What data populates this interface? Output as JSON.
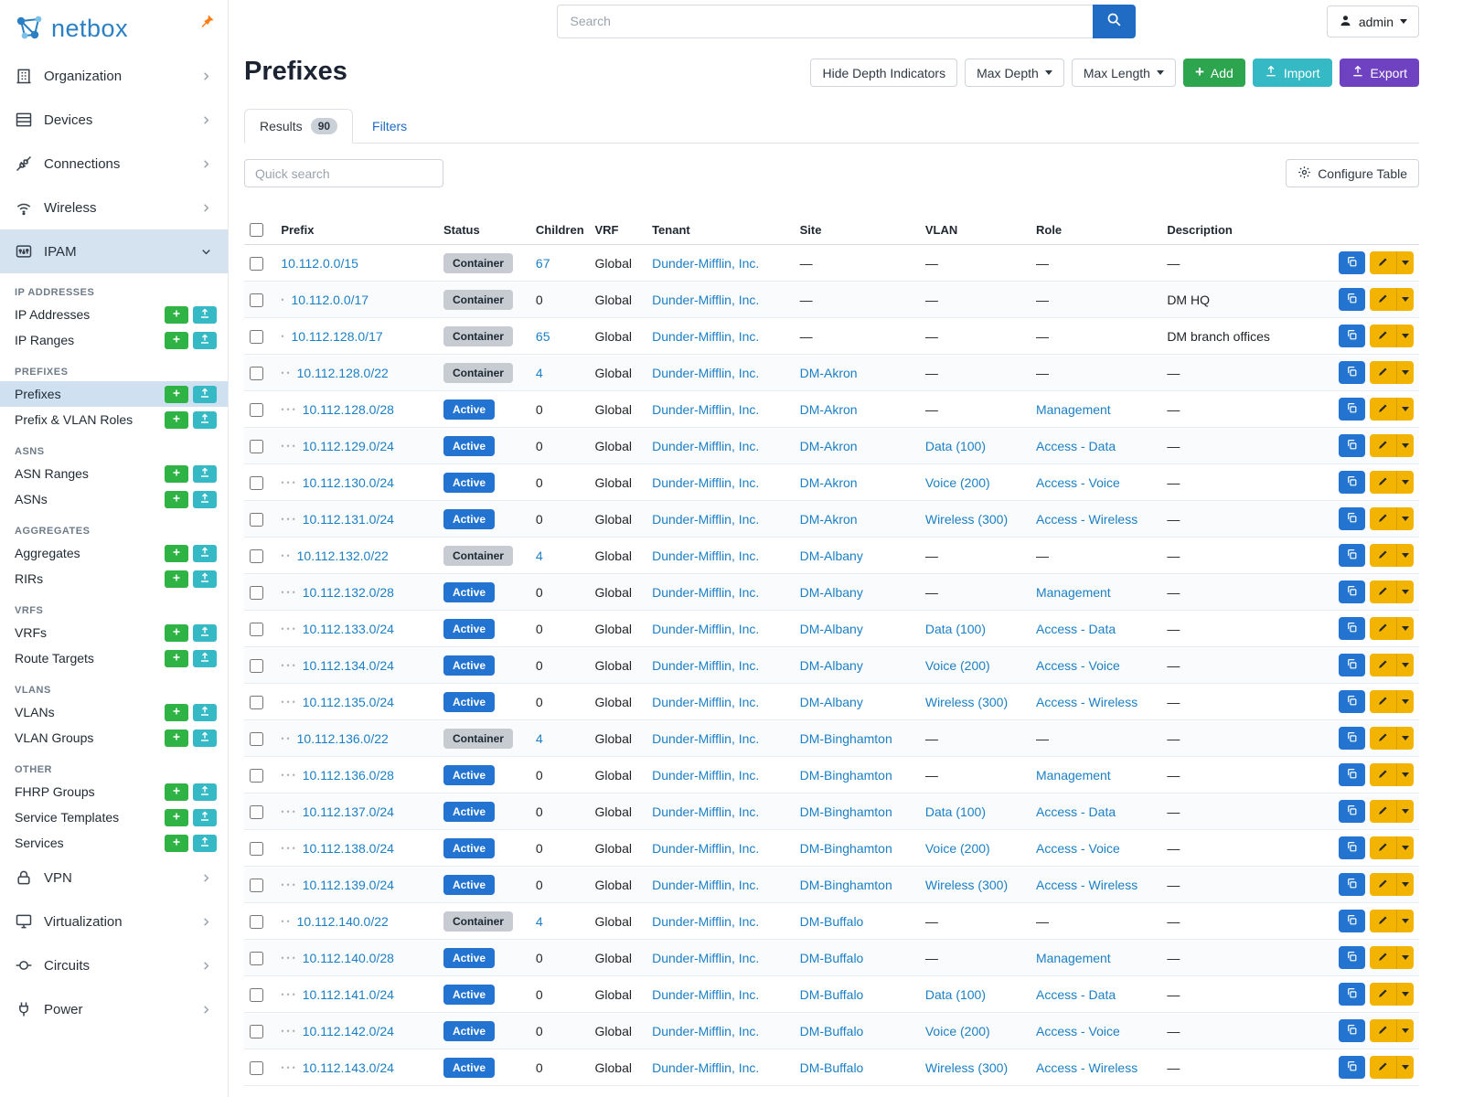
{
  "brand": {
    "name": "netbox"
  },
  "topbar": {
    "search_placeholder": "Search",
    "user": "admin"
  },
  "page": {
    "title": "Prefixes",
    "actions": {
      "hide_depth": "Hide Depth Indicators",
      "max_depth": "Max Depth",
      "max_length": "Max Length",
      "add": "Add",
      "import": "Import",
      "export": "Export"
    }
  },
  "tabs": {
    "results": "Results",
    "results_count": "90",
    "filters": "Filters"
  },
  "toolbar": {
    "quick_search_placeholder": "Quick search",
    "configure": "Configure Table"
  },
  "sidebar": {
    "items": [
      {
        "label": "Organization",
        "icon": "building-icon"
      },
      {
        "label": "Devices",
        "icon": "devices-icon"
      },
      {
        "label": "Connections",
        "icon": "connections-icon"
      },
      {
        "label": "Wireless",
        "icon": "wifi-icon"
      },
      {
        "label": "IPAM",
        "icon": "ipam-icon",
        "expanded": true,
        "groups": [
          {
            "header": "IP ADDRESSES",
            "items": [
              {
                "label": "IP Addresses"
              },
              {
                "label": "IP Ranges"
              }
            ]
          },
          {
            "header": "PREFIXES",
            "items": [
              {
                "label": "Prefixes",
                "active": true
              },
              {
                "label": "Prefix & VLAN Roles"
              }
            ]
          },
          {
            "header": "ASNS",
            "items": [
              {
                "label": "ASN Ranges"
              },
              {
                "label": "ASNs"
              }
            ]
          },
          {
            "header": "AGGREGATES",
            "items": [
              {
                "label": "Aggregates"
              },
              {
                "label": "RIRs"
              }
            ]
          },
          {
            "header": "VRFS",
            "items": [
              {
                "label": "VRFs"
              },
              {
                "label": "Route Targets"
              }
            ]
          },
          {
            "header": "VLANS",
            "items": [
              {
                "label": "VLANs"
              },
              {
                "label": "VLAN Groups"
              }
            ]
          },
          {
            "header": "OTHER",
            "items": [
              {
                "label": "FHRP Groups"
              },
              {
                "label": "Service Templates"
              },
              {
                "label": "Services"
              }
            ]
          }
        ]
      },
      {
        "label": "VPN",
        "icon": "lock-icon"
      },
      {
        "label": "Virtualization",
        "icon": "monitor-icon"
      },
      {
        "label": "Circuits",
        "icon": "circuits-icon"
      },
      {
        "label": "Power",
        "icon": "power-icon"
      }
    ]
  },
  "table": {
    "columns": [
      "Prefix",
      "Status",
      "Children",
      "VRF",
      "Tenant",
      "Site",
      "VLAN",
      "Role",
      "Description"
    ],
    "rows": [
      {
        "depth": 0,
        "prefix": "10.112.0.0/15",
        "status": "Container",
        "children": "67",
        "vrf": "Global",
        "tenant": "Dunder-Mifflin, Inc.",
        "site": "",
        "vlan": "",
        "role": "",
        "description": ""
      },
      {
        "depth": 1,
        "prefix": "10.112.0.0/17",
        "status": "Container",
        "children": "0",
        "vrf": "Global",
        "tenant": "Dunder-Mifflin, Inc.",
        "site": "",
        "vlan": "",
        "role": "",
        "description": "DM HQ"
      },
      {
        "depth": 1,
        "prefix": "10.112.128.0/17",
        "status": "Container",
        "children": "65",
        "vrf": "Global",
        "tenant": "Dunder-Mifflin, Inc.",
        "site": "",
        "vlan": "",
        "role": "",
        "description": "DM branch offices"
      },
      {
        "depth": 2,
        "prefix": "10.112.128.0/22",
        "status": "Container",
        "children": "4",
        "vrf": "Global",
        "tenant": "Dunder-Mifflin, Inc.",
        "site": "DM-Akron",
        "vlan": "",
        "role": "",
        "description": ""
      },
      {
        "depth": 3,
        "prefix": "10.112.128.0/28",
        "status": "Active",
        "children": "0",
        "vrf": "Global",
        "tenant": "Dunder-Mifflin, Inc.",
        "site": "DM-Akron",
        "vlan": "",
        "role": "Management",
        "description": ""
      },
      {
        "depth": 3,
        "prefix": "10.112.129.0/24",
        "status": "Active",
        "children": "0",
        "vrf": "Global",
        "tenant": "Dunder-Mifflin, Inc.",
        "site": "DM-Akron",
        "vlan": "Data (100)",
        "role": "Access - Data",
        "description": ""
      },
      {
        "depth": 3,
        "prefix": "10.112.130.0/24",
        "status": "Active",
        "children": "0",
        "vrf": "Global",
        "tenant": "Dunder-Mifflin, Inc.",
        "site": "DM-Akron",
        "vlan": "Voice (200)",
        "role": "Access - Voice",
        "description": ""
      },
      {
        "depth": 3,
        "prefix": "10.112.131.0/24",
        "status": "Active",
        "children": "0",
        "vrf": "Global",
        "tenant": "Dunder-Mifflin, Inc.",
        "site": "DM-Akron",
        "vlan": "Wireless (300)",
        "role": "Access - Wireless",
        "description": ""
      },
      {
        "depth": 2,
        "prefix": "10.112.132.0/22",
        "status": "Container",
        "children": "4",
        "vrf": "Global",
        "tenant": "Dunder-Mifflin, Inc.",
        "site": "DM-Albany",
        "vlan": "",
        "role": "",
        "description": ""
      },
      {
        "depth": 3,
        "prefix": "10.112.132.0/28",
        "status": "Active",
        "children": "0",
        "vrf": "Global",
        "tenant": "Dunder-Mifflin, Inc.",
        "site": "DM-Albany",
        "vlan": "",
        "role": "Management",
        "description": ""
      },
      {
        "depth": 3,
        "prefix": "10.112.133.0/24",
        "status": "Active",
        "children": "0",
        "vrf": "Global",
        "tenant": "Dunder-Mifflin, Inc.",
        "site": "DM-Albany",
        "vlan": "Data (100)",
        "role": "Access - Data",
        "description": ""
      },
      {
        "depth": 3,
        "prefix": "10.112.134.0/24",
        "status": "Active",
        "children": "0",
        "vrf": "Global",
        "tenant": "Dunder-Mifflin, Inc.",
        "site": "DM-Albany",
        "vlan": "Voice (200)",
        "role": "Access - Voice",
        "description": ""
      },
      {
        "depth": 3,
        "prefix": "10.112.135.0/24",
        "status": "Active",
        "children": "0",
        "vrf": "Global",
        "tenant": "Dunder-Mifflin, Inc.",
        "site": "DM-Albany",
        "vlan": "Wireless (300)",
        "role": "Access - Wireless",
        "description": ""
      },
      {
        "depth": 2,
        "prefix": "10.112.136.0/22",
        "status": "Container",
        "children": "4",
        "vrf": "Global",
        "tenant": "Dunder-Mifflin, Inc.",
        "site": "DM-Binghamton",
        "vlan": "",
        "role": "",
        "description": ""
      },
      {
        "depth": 3,
        "prefix": "10.112.136.0/28",
        "status": "Active",
        "children": "0",
        "vrf": "Global",
        "tenant": "Dunder-Mifflin, Inc.",
        "site": "DM-Binghamton",
        "vlan": "",
        "role": "Management",
        "description": ""
      },
      {
        "depth": 3,
        "prefix": "10.112.137.0/24",
        "status": "Active",
        "children": "0",
        "vrf": "Global",
        "tenant": "Dunder-Mifflin, Inc.",
        "site": "DM-Binghamton",
        "vlan": "Data (100)",
        "role": "Access - Data",
        "description": ""
      },
      {
        "depth": 3,
        "prefix": "10.112.138.0/24",
        "status": "Active",
        "children": "0",
        "vrf": "Global",
        "tenant": "Dunder-Mifflin, Inc.",
        "site": "DM-Binghamton",
        "vlan": "Voice (200)",
        "role": "Access - Voice",
        "description": ""
      },
      {
        "depth": 3,
        "prefix": "10.112.139.0/24",
        "status": "Active",
        "children": "0",
        "vrf": "Global",
        "tenant": "Dunder-Mifflin, Inc.",
        "site": "DM-Binghamton",
        "vlan": "Wireless (300)",
        "role": "Access - Wireless",
        "description": ""
      },
      {
        "depth": 2,
        "prefix": "10.112.140.0/22",
        "status": "Container",
        "children": "4",
        "vrf": "Global",
        "tenant": "Dunder-Mifflin, Inc.",
        "site": "DM-Buffalo",
        "vlan": "",
        "role": "",
        "description": ""
      },
      {
        "depth": 3,
        "prefix": "10.112.140.0/28",
        "status": "Active",
        "children": "0",
        "vrf": "Global",
        "tenant": "Dunder-Mifflin, Inc.",
        "site": "DM-Buffalo",
        "vlan": "",
        "role": "Management",
        "description": ""
      },
      {
        "depth": 3,
        "prefix": "10.112.141.0/24",
        "status": "Active",
        "children": "0",
        "vrf": "Global",
        "tenant": "Dunder-Mifflin, Inc.",
        "site": "DM-Buffalo",
        "vlan": "Data (100)",
        "role": "Access - Data",
        "description": ""
      },
      {
        "depth": 3,
        "prefix": "10.112.142.0/24",
        "status": "Active",
        "children": "0",
        "vrf": "Global",
        "tenant": "Dunder-Mifflin, Inc.",
        "site": "DM-Buffalo",
        "vlan": "Voice (200)",
        "role": "Access - Voice",
        "description": ""
      },
      {
        "depth": 3,
        "prefix": "10.112.143.0/24",
        "status": "Active",
        "children": "0",
        "vrf": "Global",
        "tenant": "Dunder-Mifflin, Inc.",
        "site": "DM-Buffalo",
        "vlan": "Wireless (300)",
        "role": "Access - Wireless",
        "description": ""
      }
    ]
  },
  "colors": {
    "primary": "#206bc4",
    "link": "#1b7fc5",
    "green": "#2da44e",
    "teal": "#35b9c5",
    "purple": "#6f42c1",
    "yellow": "#f2b400",
    "active_badge": "#2374d0",
    "container_badge": "#c6ccd2",
    "sidebar_active": "#d5e3f1",
    "pin_orange": "#fd7e14"
  }
}
